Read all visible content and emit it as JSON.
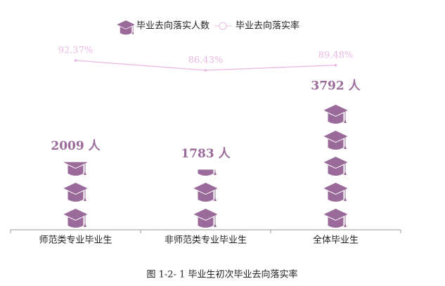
{
  "chart_data": {
    "type": "pictograph",
    "caption": "图 1-2- 1  毕业生初次毕业去向落实率",
    "categories": [
      "师范类专业毕业生",
      "非师范类专业毕业生",
      "全体毕业生"
    ],
    "series": [
      {
        "name": "毕业去向落实人数",
        "color": "#9a6a9a",
        "values": [
          2009,
          1783,
          3792
        ],
        "value_labels": [
          "2009 人",
          "1783 人",
          "3792 人"
        ]
      },
      {
        "name": "毕业去向落实率",
        "color": "#e9b8e3",
        "axis": "y2",
        "type": "line",
        "values": [
          92.37,
          86.43,
          89.48
        ],
        "value_labels": [
          "92.37%",
          "86.43%",
          "89.48%"
        ]
      }
    ],
    "ylim": [
      0,
      4000
    ],
    "y2lim": [
      0,
      100
    ]
  }
}
